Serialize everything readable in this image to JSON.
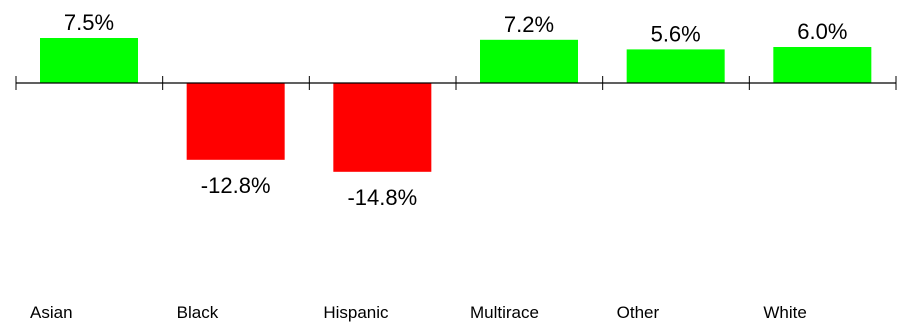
{
  "chart_data": {
    "type": "bar",
    "categories": [
      "Asian",
      "Black",
      "Hispanic",
      "Multirace",
      "Other",
      "White"
    ],
    "values": [
      7.5,
      -12.8,
      -14.8,
      7.2,
      5.6,
      6.0
    ],
    "value_labels": [
      "7.5%",
      "-12.8%",
      "-14.8%",
      "7.2%",
      "5.6%",
      "6.0%"
    ],
    "positive_color": "#00ff00",
    "negative_color": "#ff0000",
    "axis_color": "#000000",
    "ylim": [
      -14.8,
      7.5
    ],
    "grid": false,
    "legend": "none"
  }
}
